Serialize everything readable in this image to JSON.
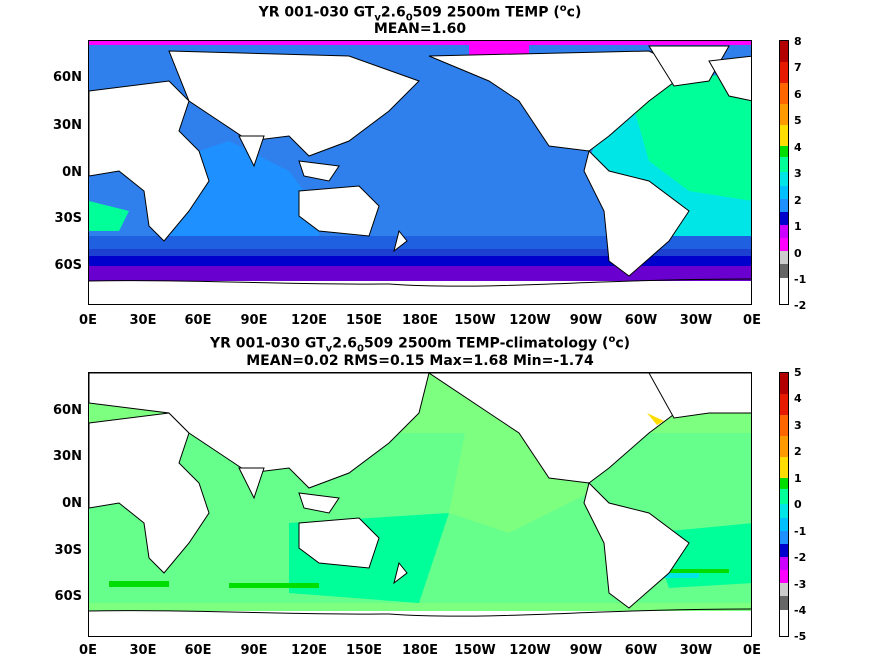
{
  "panels": [
    {
      "title_main": "YR 001-030 GT",
      "title_sub": "v",
      "title_mid": "2.6",
      "title_sub2": "0",
      "title_tail": "509 2500m TEMP (",
      "title_sup": "o",
      "title_end": "c)",
      "stats": "MEAN=1.60",
      "colorbar_labels": [
        "8",
        "7",
        "6",
        "5",
        "4",
        "3",
        "2",
        "1",
        "0",
        "-1",
        "-2"
      ],
      "colorbar_colors": [
        "#b30000",
        "#e61a00",
        "#ff6600",
        "#ff9900",
        "#ffdd00",
        "#00dd00",
        "#66ff99",
        "#00e6e6",
        "#1e90ff",
        "#0000cc",
        "#cc00ff",
        "#cccccc",
        "#666666"
      ],
      "ocean_regions": {
        "pacific": "1-2",
        "atlantic_north": "2-3",
        "southern_ocean": "0-1"
      }
    },
    {
      "title_main": "YR 001-030 GT",
      "title_sub": "v",
      "title_mid": "2.6",
      "title_sub2": "0",
      "title_tail": "509 2500m TEMP-climatology (",
      "title_sup": "o",
      "title_end": "c)",
      "stats": "MEAN=0.02   RMS=0.15    Max=1.68   Min=-1.74",
      "colorbar_labels": [
        "5",
        "4",
        "3",
        "2",
        "1",
        "0",
        "-1",
        "-2",
        "-3",
        "-4",
        "-5"
      ],
      "colorbar_colors": [
        "#b30000",
        "#e61a00",
        "#ff6600",
        "#ff9900",
        "#ffdd00",
        "#00dd00",
        "#66ff99",
        "#00e6e6",
        "#1e90ff",
        "#0000cc",
        "#cc00ff",
        "#cccccc",
        "#666666"
      ]
    }
  ],
  "lat_labels": [
    "60N",
    "30N",
    "0N",
    "30S",
    "60S"
  ],
  "lon_labels": [
    "0E",
    "30E",
    "60E",
    "90E",
    "120E",
    "150E",
    "180E",
    "150W",
    "120W",
    "90W",
    "60W",
    "30W",
    "0E"
  ],
  "colors": {
    "land": "#ffffff",
    "deep_blue": "#1e6fe0",
    "mid_blue": "#1e90ff",
    "cyan": "#00e6e6",
    "light_cyan": "#00d0ff",
    "navy": "#0000cc",
    "purple": "#9900cc",
    "magenta": "#ff00ff",
    "green_anom": "#66ff99",
    "bright_green": "#00dd00",
    "yellow": "#ffdd00"
  }
}
